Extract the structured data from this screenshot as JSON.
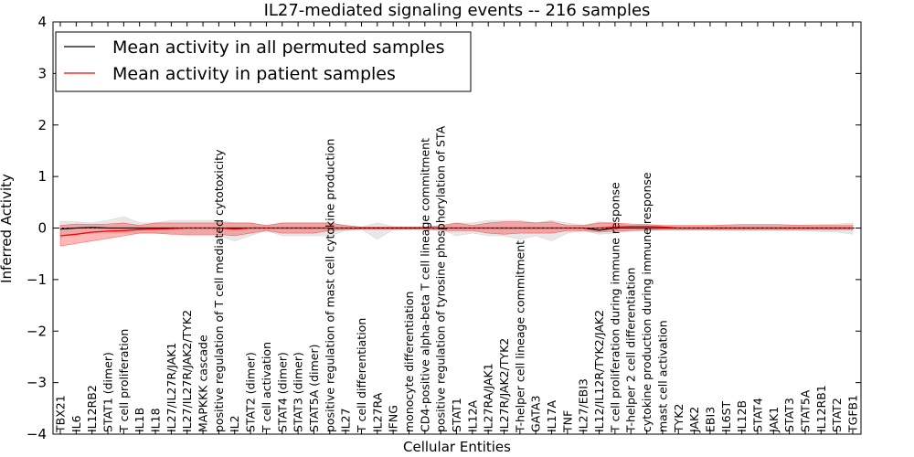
{
  "chart_data": {
    "type": "line",
    "title": "IL27-mediated signaling events -- 216 samples",
    "xlabel": "Cellular Entities",
    "ylabel": "Inferred Activity",
    "ylim": [
      -4,
      4
    ],
    "yticks": [
      "4",
      "3",
      "2",
      "1",
      "0",
      "−1",
      "−2",
      "−3",
      "−4"
    ],
    "ytick_values": [
      4,
      3,
      2,
      1,
      0,
      -1,
      -2,
      -3,
      -4
    ],
    "categories": [
      "TBX21",
      "IL6",
      "IL12RB2",
      "STAT1 (dimer)",
      "T cell proliferation",
      "IL1B",
      "IL18",
      "IL27/IL27R/JAK1",
      "IL27/IL27R/JAK2/TYK2",
      "MAPKKK cascade",
      "positive regulation of T cell mediated cytotoxicity",
      "IL2",
      "STAT2 (dimer)",
      "T cell activation",
      "STAT4 (dimer)",
      "STAT3 (dimer)",
      "STAT5A (dimer)",
      "positive regulation of mast cell cytokine production",
      "IL27",
      "T cell differentiation",
      "IL27RA",
      "IFNG",
      "monocyte differentiation",
      "CD4-positive alpha-beta T cell lineage commitment",
      "positive regulation of tyrosine phosphorylation of STA",
      "STAT1",
      "IL12A",
      "IL27RA/JAK1",
      "IL27R/JAK2/TYK2",
      "T-helper cell lineage commitment",
      "GATA3",
      "IL17A",
      "TNF",
      "IL27/EBI3",
      "IL12/IL12R/TYK2/JAK2",
      "T cell proliferation during immune response",
      "T-helper 2 cell differentiation",
      "cytokine production during immune response",
      "mast cell activation",
      "TYK2",
      "JAK2",
      "EBI3",
      "IL6ST",
      "IL12B",
      "STAT4",
      "JAK1",
      "STAT3",
      "STAT5A",
      "IL12RB1",
      "STAT2",
      "TGFB1"
    ],
    "series": [
      {
        "name": "Mean activity in all permuted samples",
        "color": "#000000",
        "values": [
          -0.02,
          0.0,
          0.01,
          0.0,
          0.0,
          0.0,
          0.0,
          0.0,
          0.0,
          0.0,
          0.0,
          0.0,
          0.0,
          0.0,
          0.0,
          0.0,
          0.0,
          0.0,
          0.0,
          0.0,
          0.0,
          0.0,
          0.0,
          0.0,
          0.0,
          0.0,
          0.0,
          0.0,
          0.0,
          0.0,
          0.0,
          0.0,
          0.0,
          0.0,
          -0.04,
          0.0,
          0.0,
          0.0,
          0.0,
          0.0,
          0.0,
          0.0,
          0.0,
          0.0,
          0.0,
          0.0,
          0.0,
          0.0,
          0.0,
          0.0,
          0.0
        ],
        "lower": [
          -0.13,
          -0.12,
          -0.1,
          -0.1,
          -0.1,
          -0.1,
          -0.1,
          -0.1,
          -0.15,
          -0.15,
          -0.15,
          -0.25,
          -0.15,
          -0.05,
          -0.15,
          -0.15,
          -0.15,
          -0.15,
          -0.05,
          -0.02,
          -0.22,
          -0.03,
          -0.02,
          -0.02,
          -0.02,
          -0.15,
          -0.1,
          -0.15,
          -0.15,
          -0.22,
          -0.15,
          -0.25,
          -0.1,
          -0.05,
          -0.12,
          -0.1,
          -0.05,
          -0.05,
          -0.04,
          -0.04,
          -0.04,
          -0.04,
          -0.05,
          -0.05,
          -0.05,
          -0.05,
          -0.05,
          -0.06,
          -0.07,
          -0.08,
          -0.12
        ],
        "upper": [
          0.13,
          0.12,
          0.1,
          0.15,
          0.22,
          0.1,
          0.1,
          0.15,
          0.15,
          0.15,
          0.15,
          0.1,
          0.1,
          0.05,
          0.1,
          0.1,
          0.1,
          0.1,
          0.05,
          0.02,
          0.1,
          0.03,
          0.02,
          0.02,
          0.02,
          0.1,
          0.1,
          0.15,
          0.15,
          0.15,
          0.1,
          0.15,
          0.1,
          0.05,
          0.12,
          0.1,
          0.05,
          0.05,
          0.04,
          0.04,
          0.04,
          0.04,
          0.05,
          0.05,
          0.05,
          0.05,
          0.05,
          0.06,
          0.07,
          0.08,
          0.1
        ]
      },
      {
        "name": "Mean activity in patient samples",
        "color": "#ff0000",
        "values": [
          -0.15,
          -0.12,
          -0.08,
          -0.06,
          -0.05,
          -0.03,
          -0.02,
          -0.01,
          0.0,
          0.0,
          0.0,
          -0.02,
          0.0,
          0.0,
          0.0,
          0.0,
          0.0,
          0.0,
          0.0,
          0.0,
          0.0,
          0.0,
          0.0,
          0.0,
          0.0,
          0.0,
          0.0,
          0.0,
          0.0,
          0.0,
          0.0,
          0.0,
          0.0,
          0.0,
          0.0,
          0.02,
          0.03,
          0.03,
          0.02,
          0.0,
          0.0,
          0.0,
          0.0,
          0.0,
          0.0,
          0.0,
          0.0,
          0.0,
          0.0,
          0.0,
          0.0
        ],
        "lower": [
          -0.35,
          -0.3,
          -0.25,
          -0.2,
          -0.15,
          -0.1,
          -0.1,
          -0.12,
          -0.12,
          -0.12,
          -0.12,
          -0.15,
          -0.1,
          -0.05,
          -0.1,
          -0.1,
          -0.1,
          -0.05,
          -0.03,
          -0.02,
          -0.02,
          -0.02,
          -0.02,
          -0.02,
          -0.05,
          -0.05,
          -0.05,
          -0.1,
          -0.12,
          -0.1,
          -0.1,
          -0.1,
          -0.05,
          -0.05,
          -0.08,
          -0.06,
          -0.05,
          -0.04,
          -0.03,
          -0.03,
          -0.03,
          -0.03,
          -0.03,
          -0.03,
          -0.03,
          -0.03,
          -0.03,
          -0.03,
          -0.03,
          -0.03,
          -0.03
        ],
        "upper": [
          0.05,
          0.08,
          0.07,
          0.08,
          0.1,
          0.05,
          0.1,
          0.1,
          0.1,
          0.1,
          0.1,
          0.1,
          0.1,
          0.05,
          0.1,
          0.1,
          0.1,
          0.1,
          0.05,
          0.02,
          0.02,
          0.02,
          0.02,
          0.02,
          0.05,
          0.1,
          0.05,
          0.1,
          0.12,
          0.12,
          0.1,
          0.12,
          0.05,
          0.05,
          0.1,
          0.1,
          0.08,
          0.07,
          0.05,
          0.05,
          0.05,
          0.05,
          0.06,
          0.07,
          0.07,
          0.07,
          0.06,
          0.05,
          0.05,
          0.05,
          0.05
        ]
      }
    ],
    "legend_position": "top-left",
    "grid": false
  }
}
